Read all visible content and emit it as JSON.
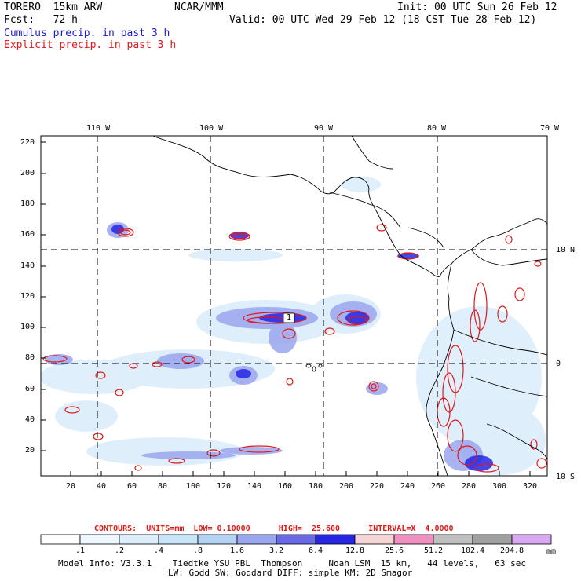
{
  "header": {
    "run": "TORERO  15km ARW",
    "center": "NCAR/MMM",
    "init": "Init: 00 UTC Sun 26 Feb 12",
    "fcst": "Fcst:   72 h",
    "valid": "Valid: 00 UTC Wed 29 Feb 12 (18 CST Tue 28 Feb 12)",
    "cumulus": "Cumulus precip. in past 3 h",
    "explicit": "Explicit precip. in past 3 h"
  },
  "map": {
    "top_lon_labels": [
      "110 W",
      "100 W",
      "90 W",
      "80 W",
      "70 W"
    ],
    "right_lat_labels": [
      "10 N",
      "0",
      "10 S"
    ],
    "y_ticks": [
      "220",
      "200",
      "180",
      "160",
      "140",
      "120",
      "100",
      "80",
      "60",
      "40",
      "20"
    ],
    "x_ticks": [
      "20",
      "40",
      "60",
      "80",
      "100",
      "120",
      "140",
      "160",
      "180",
      "200",
      "220",
      "240",
      "260",
      "280",
      "300",
      "320"
    ],
    "max_label": "1"
  },
  "contours": {
    "text": "CONTOURS:  UNITS=mm  LOW= 0.10000      HIGH=  25.600      INTERVAL=X  4.0000"
  },
  "colorbar": {
    "labels": [
      ".1",
      ".2",
      ".4",
      ".8",
      "1.6",
      "3.2",
      "6.4",
      "12.8",
      "25.6",
      "51.2",
      "102.4",
      "204.8"
    ],
    "units": "mm",
    "colors": [
      "#ffffff",
      "#eef6ff",
      "#dcedfb",
      "#c8e4f8",
      "#b4d2f4",
      "#9aa6ee",
      "#6a6ae8",
      "#2626e4",
      "#f4d4d4",
      "#f090c0",
      "#bfbfbf",
      "#a0a0a0",
      "#d8a8f0"
    ]
  },
  "footer": {
    "line1": "Model Info: V3.3.1    Tiedtke YSU PBL  Thompson     Noah LSM  15 km,   44 levels,   63 sec",
    "line2": "LW: Godd SW: Goddard DIFF: simple KM: 2D Smagor"
  }
}
